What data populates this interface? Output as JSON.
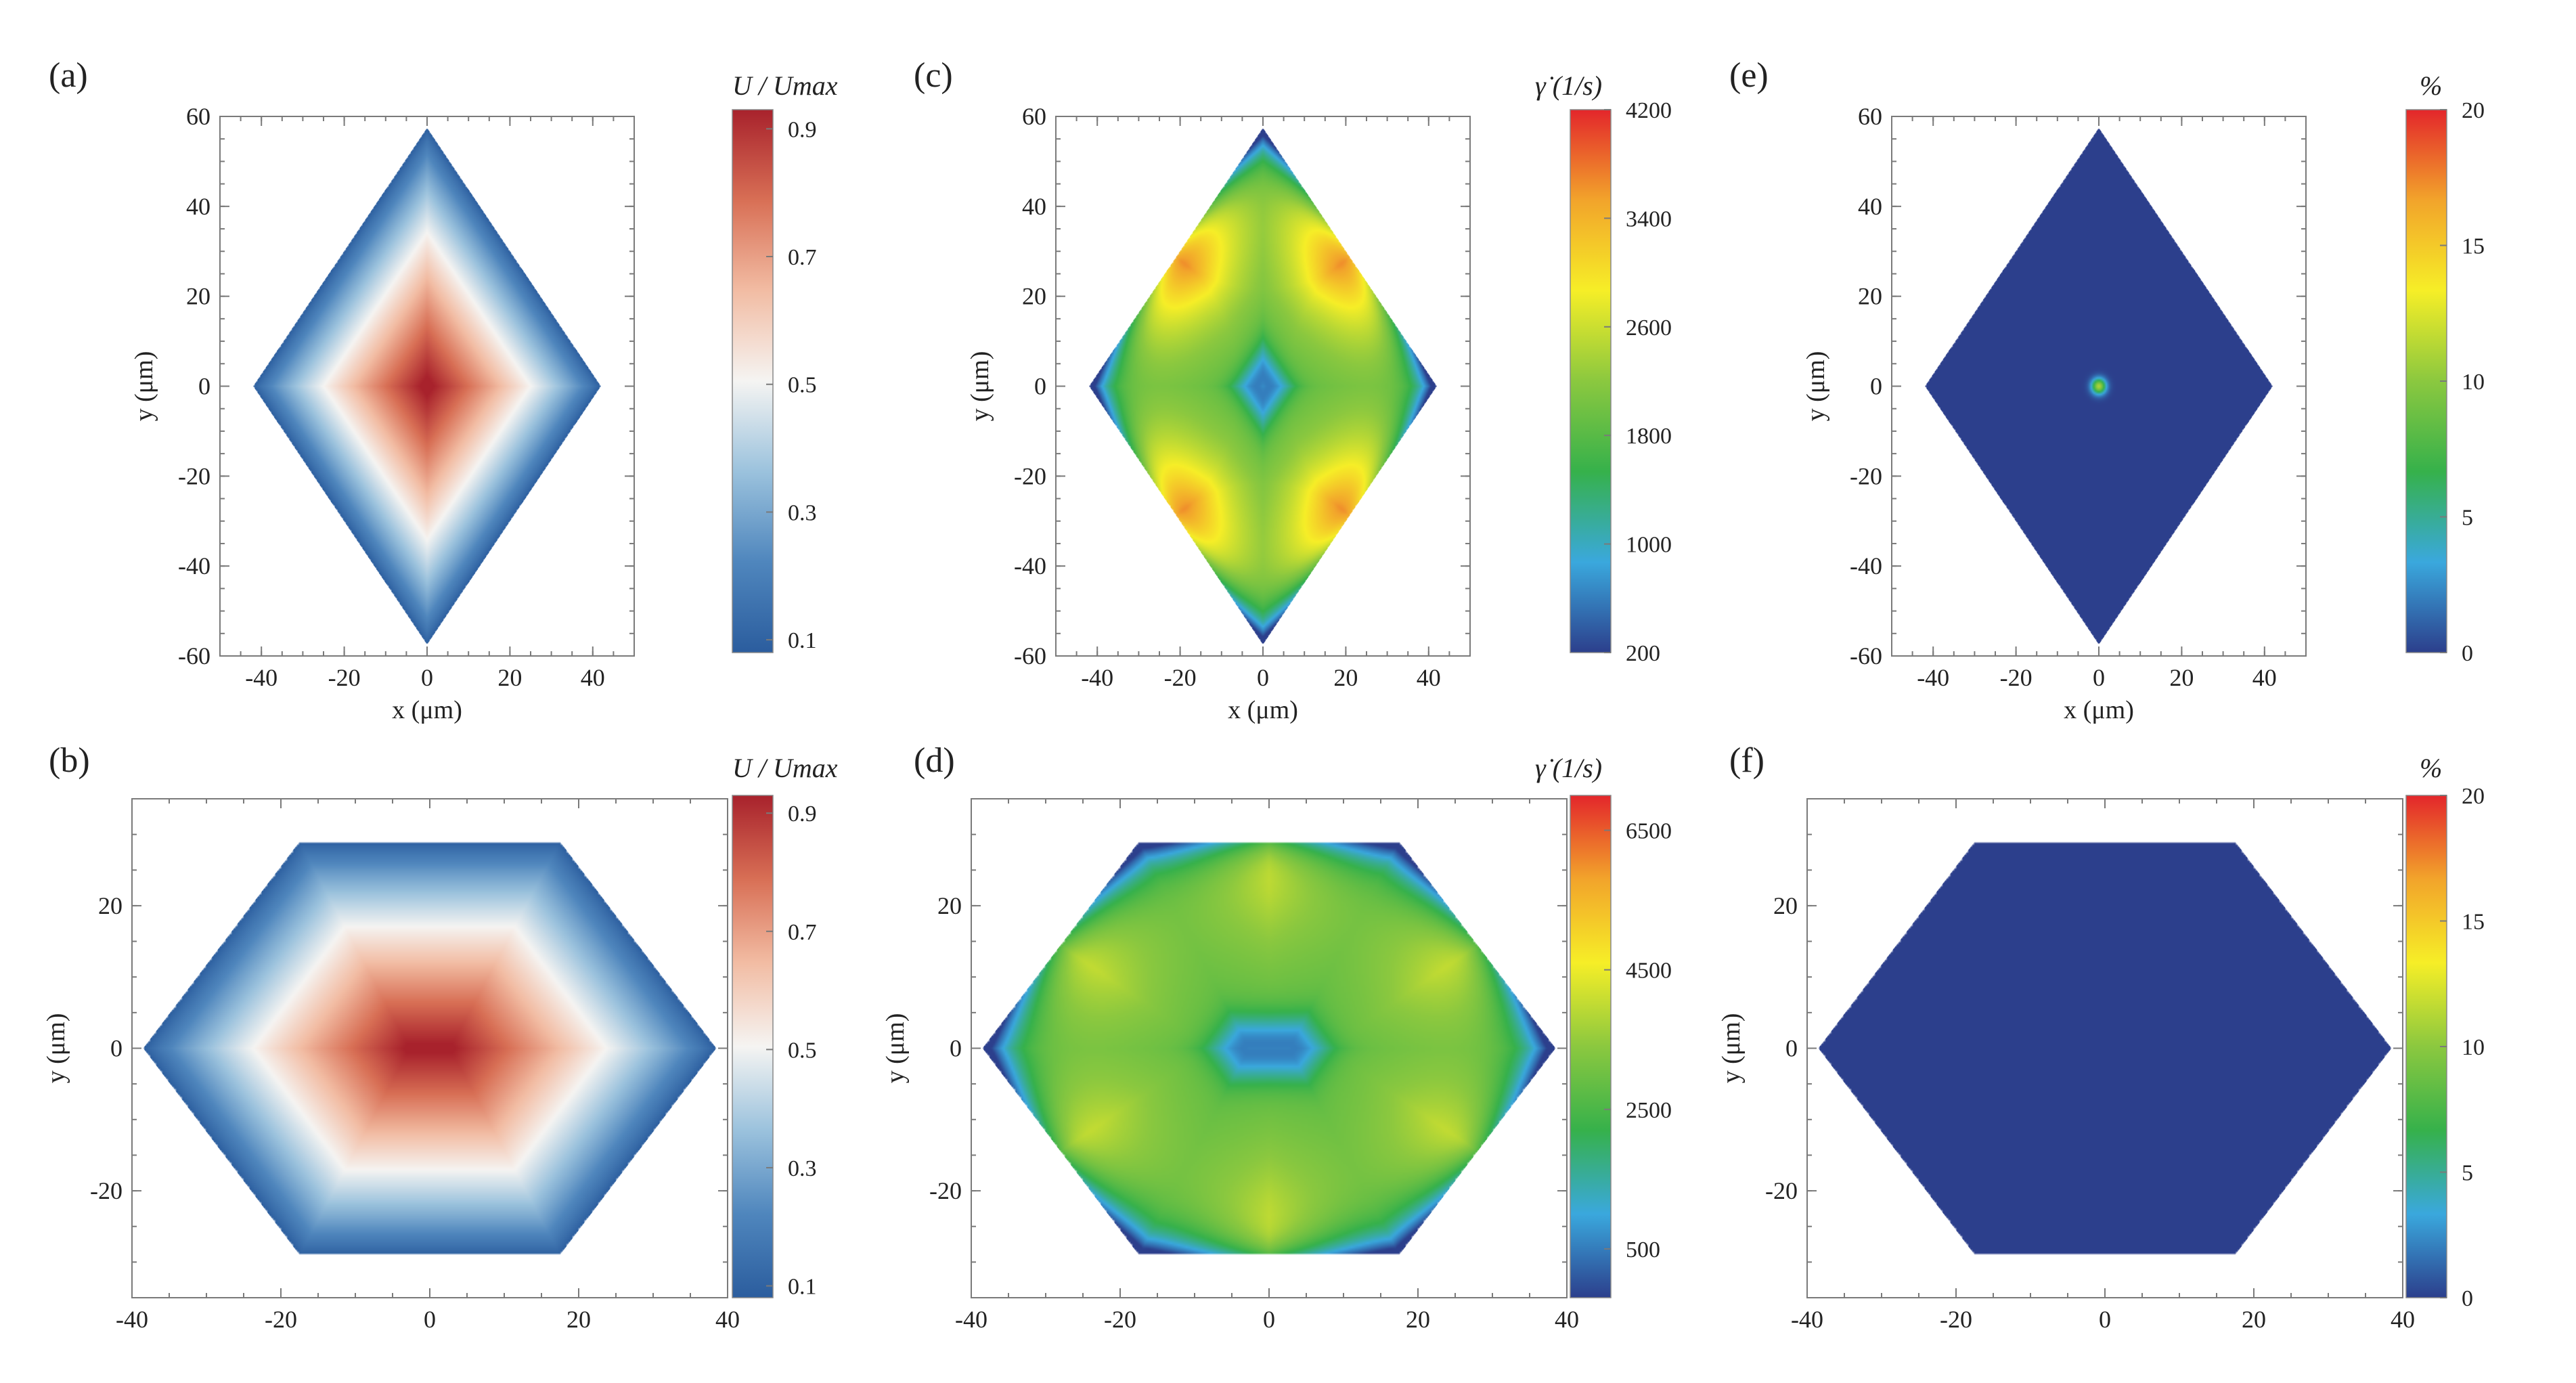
{
  "palettes": {
    "redblue": [
      "#2b5d9e",
      "#4f86bd",
      "#9bc2dd",
      "#f5f4f2",
      "#f2bca3",
      "#d86f55",
      "#a8222c"
    ],
    "jet": [
      "#2c3f8c",
      "#3aa8dd",
      "#36b14b",
      "#8bc83f",
      "#f6ee27",
      "#f2a42b",
      "#e3262b"
    ],
    "shape_fill": "#2f4a8c"
  },
  "chart_data": [
    {
      "id": "a",
      "panel_label": "(a)",
      "type": "heatmap",
      "shape": "rhombus",
      "field": "velocity",
      "xlabel": "x (μm)",
      "ylabel": "y (μm)",
      "xlim": [
        -50,
        50
      ],
      "ylim": [
        -60,
        60
      ],
      "xticks": [
        -40,
        -20,
        0,
        20,
        40
      ],
      "yticks": [
        -60,
        -40,
        -20,
        0,
        20,
        40,
        60
      ],
      "xtick_labels": [
        "-40",
        "-20",
        "0",
        "20",
        "40"
      ],
      "ytick_labels": [
        "-60",
        "-40",
        "-20",
        "0",
        "20",
        "40",
        "60"
      ],
      "vertices": [
        [
          0,
          57.5
        ],
        [
          42,
          0
        ],
        [
          0,
          -57.5
        ],
        [
          -42,
          0
        ]
      ],
      "colorbar": {
        "title": "U / Umax",
        "palette": "redblue",
        "range": [
          0.08,
          0.93
        ],
        "ticks": [
          0.1,
          0.3,
          0.5,
          0.7,
          0.9
        ],
        "tick_labels": [
          "0.1",
          "0.3",
          "0.5",
          "0.7",
          "0.9"
        ]
      }
    },
    {
      "id": "b",
      "panel_label": "(b)",
      "type": "heatmap",
      "shape": "hexagon",
      "field": "velocity",
      "xlabel": "",
      "ylabel": "y (μm)",
      "xlim": [
        -40,
        40
      ],
      "ylim": [
        -35,
        35
      ],
      "xticks": [
        -40,
        -20,
        0,
        20,
        40
      ],
      "yticks": [
        -20,
        0,
        20
      ],
      "xtick_labels": [
        "-40",
        "-20",
        "0",
        "20",
        "40"
      ],
      "ytick_labels": [
        "-20",
        "0",
        "20"
      ],
      "vertices": [
        [
          -17.5,
          29
        ],
        [
          17.5,
          29
        ],
        [
          38.5,
          0
        ],
        [
          17.5,
          -29
        ],
        [
          -17.5,
          -29
        ],
        [
          -38.5,
          0
        ]
      ],
      "colorbar": {
        "title": "U / Umax",
        "palette": "redblue",
        "range": [
          0.08,
          0.93
        ],
        "ticks": [
          0.1,
          0.3,
          0.5,
          0.7,
          0.9
        ],
        "tick_labels": [
          "0.1",
          "0.3",
          "0.5",
          "0.7",
          "0.9"
        ]
      }
    },
    {
      "id": "c",
      "panel_label": "(c)",
      "type": "heatmap",
      "shape": "rhombus",
      "field": "shear",
      "xlabel": "x (μm)",
      "ylabel": "y (μm)",
      "xlim": [
        -50,
        50
      ],
      "ylim": [
        -60,
        60
      ],
      "xticks": [
        -40,
        -20,
        0,
        20,
        40
      ],
      "yticks": [
        -60,
        -40,
        -20,
        0,
        20,
        40,
        60
      ],
      "xtick_labels": [
        "-40",
        "-20",
        "0",
        "20",
        "40"
      ],
      "ytick_labels": [
        "-60",
        "-40",
        "-20",
        "0",
        "20",
        "40",
        "60"
      ],
      "vertices": [
        [
          0,
          57.5
        ],
        [
          42,
          0
        ],
        [
          0,
          -57.5
        ],
        [
          -42,
          0
        ]
      ],
      "colorbar": {
        "title": "γ̇ (1/s)",
        "palette": "jet",
        "range": [
          200,
          4200
        ],
        "ticks": [
          200,
          1000,
          1800,
          2600,
          3400,
          4200
        ],
        "tick_labels": [
          "200",
          "1000",
          "1800",
          "2600",
          "3400",
          "4200"
        ]
      }
    },
    {
      "id": "d",
      "panel_label": "(d)",
      "type": "heatmap",
      "shape": "hexagon",
      "field": "shear",
      "xlabel": "",
      "ylabel": "y (μm)",
      "xlim": [
        -40,
        40
      ],
      "ylim": [
        -35,
        35
      ],
      "xticks": [
        -40,
        -20,
        0,
        20,
        40
      ],
      "yticks": [
        -20,
        0,
        20
      ],
      "xtick_labels": [
        "-40",
        "-20",
        "0",
        "20",
        "40"
      ],
      "ytick_labels": [
        "-20",
        "0",
        "20"
      ],
      "vertices": [
        [
          -17.5,
          29
        ],
        [
          17.5,
          29
        ],
        [
          38.5,
          0
        ],
        [
          17.5,
          -29
        ],
        [
          -17.5,
          -29
        ],
        [
          -38.5,
          0
        ]
      ],
      "colorbar": {
        "title": "γ̇ (1/s)",
        "palette": "jet",
        "range": [
          -200,
          7000
        ],
        "ticks": [
          500,
          2500,
          4500,
          6500
        ],
        "tick_labels": [
          "500",
          "2500",
          "4500",
          "6500"
        ]
      }
    },
    {
      "id": "e",
      "panel_label": "(e)",
      "type": "heatmap",
      "shape": "rhombus",
      "field": "percent",
      "xlabel": "x (μm)",
      "ylabel": "y (μm)",
      "xlim": [
        -50,
        50
      ],
      "ylim": [
        -60,
        60
      ],
      "xticks": [
        -40,
        -20,
        0,
        20,
        40
      ],
      "yticks": [
        -60,
        -40,
        -20,
        0,
        20,
        40,
        60
      ],
      "xtick_labels": [
        "-40",
        "-20",
        "0",
        "20",
        "40"
      ],
      "ytick_labels": [
        "-60",
        "-40",
        "-20",
        "0",
        "20",
        "40",
        "60"
      ],
      "vertices": [
        [
          0,
          57.5
        ],
        [
          42,
          0
        ],
        [
          0,
          -57.5
        ],
        [
          -42,
          0
        ]
      ],
      "spot": {
        "x": 0,
        "y": 0
      },
      "colorbar": {
        "title": "%",
        "palette": "jet",
        "range": [
          0,
          20
        ],
        "ticks": [
          0,
          5,
          10,
          15,
          20
        ],
        "tick_labels": [
          "0",
          "5",
          "10",
          "15",
          "20"
        ]
      }
    },
    {
      "id": "f",
      "panel_label": "(f)",
      "type": "heatmap",
      "shape": "hexagon",
      "field": "percent",
      "xlabel": "",
      "ylabel": "y (μm)",
      "xlim": [
        -40,
        40
      ],
      "ylim": [
        -35,
        35
      ],
      "xticks": [
        -40,
        -20,
        0,
        20,
        40
      ],
      "yticks": [
        -20,
        0,
        20
      ],
      "xtick_labels": [
        "-40",
        "-20",
        "0",
        "20",
        "40"
      ],
      "ytick_labels": [
        "-20",
        "0",
        "20"
      ],
      "vertices": [
        [
          -17.5,
          29
        ],
        [
          17.5,
          29
        ],
        [
          38.5,
          0
        ],
        [
          17.5,
          -29
        ],
        [
          -17.5,
          -29
        ],
        [
          -38.5,
          0
        ]
      ],
      "colorbar": {
        "title": "%",
        "palette": "jet",
        "range": [
          0,
          20
        ],
        "ticks": [
          0,
          5,
          10,
          15,
          20
        ],
        "tick_labels": [
          "0",
          "5",
          "10",
          "15",
          "20"
        ]
      }
    }
  ]
}
